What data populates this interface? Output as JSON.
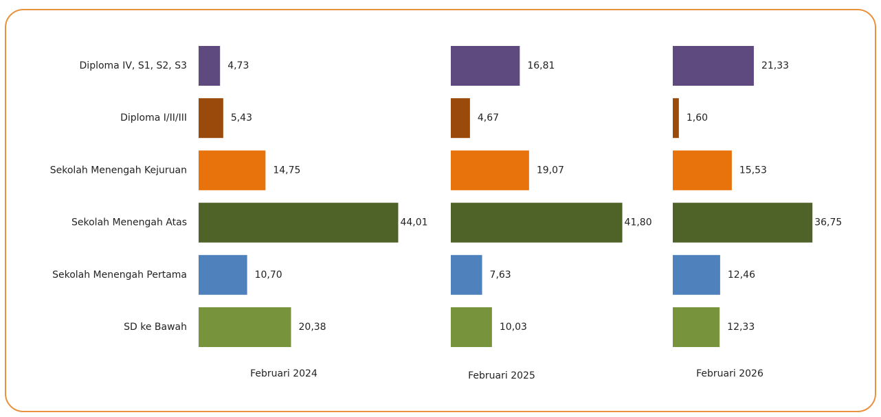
{
  "chart_data": {
    "type": "bar",
    "orientation": "horizontal",
    "categories": [
      "Diploma IV, S1, S2, S3",
      "Diploma I/II/III",
      "Sekolah Menengah Kejuruan",
      "Sekolah Menengah Atas",
      "Sekolah Menengah Pertama",
      "SD ke Bawah"
    ],
    "colors": [
      "#5e4a7e",
      "#9a4a0a",
      "#e8720c",
      "#4f6228",
      "#4f81bd",
      "#77933c"
    ],
    "series": [
      {
        "name": "Februari 2024",
        "values": [
          4.73,
          5.43,
          14.75,
          44.01,
          10.7,
          20.38
        ],
        "value_labels": [
          "4,73",
          "5,43",
          "14,75",
          "44,01",
          "10,70",
          "20,38"
        ]
      },
      {
        "name": "Februari 2025",
        "values": [
          16.81,
          4.67,
          19.07,
          41.8,
          7.63,
          10.03
        ],
        "value_labels": [
          "16,81",
          "4,67",
          "19,07",
          "41,80",
          "7,63",
          "10,03"
        ]
      },
      {
        "name": "Februari 2026",
        "values": [
          21.33,
          1.6,
          15.53,
          36.75,
          12.46,
          12.33
        ],
        "value_labels": [
          "21,33",
          "1,60",
          "15,53",
          "36,75",
          "12,46",
          "12,33"
        ]
      }
    ]
  }
}
